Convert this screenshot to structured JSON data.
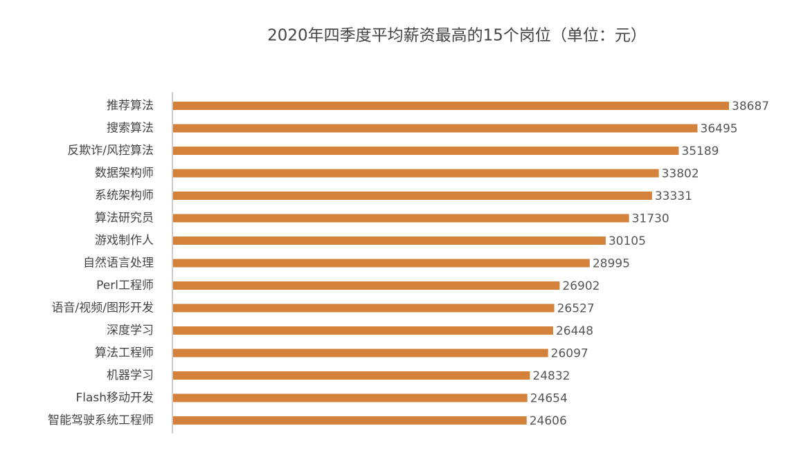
{
  "chart_data": {
    "type": "bar",
    "orientation": "horizontal",
    "title": "2020年四季度平均薪资最高的15个岗位（单位：元）",
    "categories": [
      "推荐算法",
      "搜索算法",
      "反欺诈/风控算法",
      "数据架构师",
      "系统架构师",
      "算法研究员",
      "游戏制作人",
      "自然语言处理",
      "Perl工程师",
      "语音/视频/图形开发",
      "深度学习",
      "算法工程师",
      "机器学习",
      "Flash移动开发",
      "智能驾驶系统工程师"
    ],
    "values": [
      38687,
      36495,
      35189,
      33802,
      33331,
      31730,
      30105,
      28995,
      26902,
      26527,
      26448,
      26097,
      24832,
      24654,
      24606
    ],
    "color": "#d4813b"
  }
}
